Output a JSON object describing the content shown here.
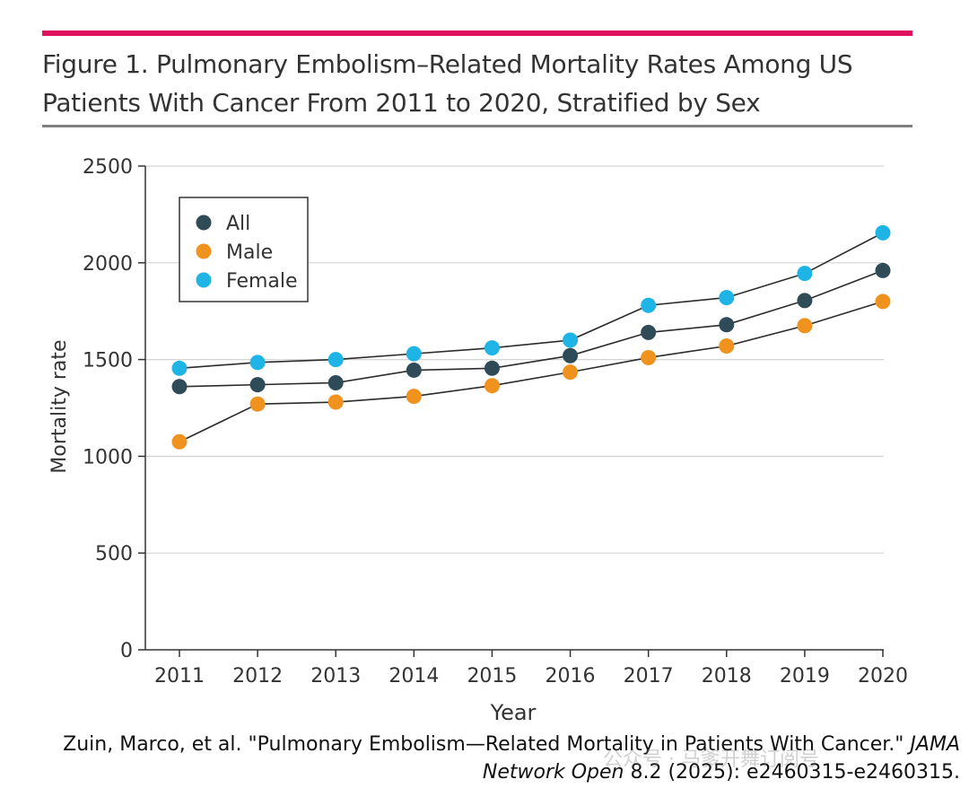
{
  "figure": {
    "title": "Figure 1. Pulmonary Embolism–Related Mortality Rates Among US Patients With Cancer From 2011 to 2020, Stratified by Sex",
    "rule_color": "#e0115f"
  },
  "chart_data": {
    "type": "line",
    "xlabel": "Year",
    "ylabel": "Mortality rate",
    "x": [
      2011,
      2012,
      2013,
      2014,
      2015,
      2016,
      2017,
      2018,
      2019,
      2020
    ],
    "ylim": [
      0,
      2500
    ],
    "yticks": [
      0,
      500,
      1000,
      1500,
      2000,
      2500
    ],
    "grid": true,
    "legend_position": "top-left",
    "series": [
      {
        "name": "All",
        "color": "#2e4b57",
        "values": [
          1360,
          1370,
          1380,
          1445,
          1455,
          1520,
          1640,
          1680,
          1805,
          1960
        ]
      },
      {
        "name": "Male",
        "color": "#f0921e",
        "values": [
          1075,
          1270,
          1280,
          1310,
          1365,
          1435,
          1510,
          1570,
          1675,
          1800
        ]
      },
      {
        "name": "Female",
        "color": "#1eb4e6",
        "values": [
          1455,
          1485,
          1500,
          1530,
          1560,
          1600,
          1780,
          1820,
          1945,
          2155
        ]
      }
    ]
  },
  "citation": {
    "line1_plain": "Zuin, Marco, et al. \"Pulmonary Embolism—Related Mortality in Patients With Cancer.\" ",
    "line1_italic": "JAMA",
    "line2_italic": "Network Open",
    "line2_plain": " 8.2 (2025): e2460315-e2460315."
  },
  "watermark": "公众号 · 马爹开舞订阅号"
}
